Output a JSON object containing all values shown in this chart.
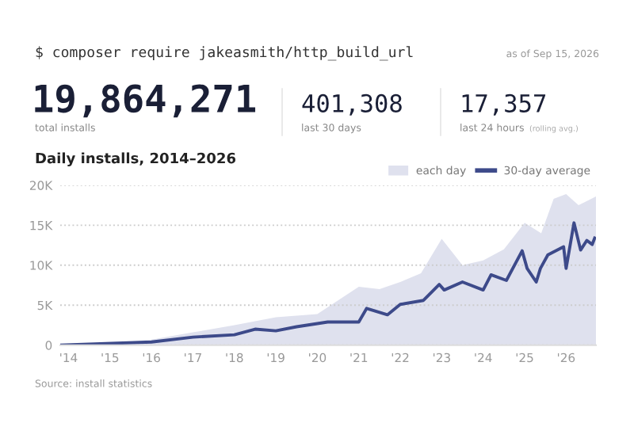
{
  "chart_data": {
    "type": "line",
    "title": "Daily installs, 2014–2026",
    "annotations": [
      "$ composer require jakeasmith/http_build_url",
      "as of Sep 15, 2026",
      "19,864,271",
      "total installs",
      "401,308",
      "last 30 days",
      "17,357",
      "last 24 hours",
      "(rolling avg.)",
      "Source: install statistics"
    ],
    "series": [
      {
        "name": "each day",
        "type": "area",
        "color": "#dfe1ee",
        "x": [
          2013.8,
          2015,
          2016,
          2017,
          2018,
          2019,
          2020,
          2021,
          2021.5,
          2022,
          2022.5,
          2023,
          2023.5,
          2024,
          2024.5,
          2025,
          2025.4,
          2025.7,
          2026,
          2026.3,
          2026.72
        ],
        "values": [
          0,
          200,
          700,
          1600,
          2500,
          3500,
          3900,
          7300,
          7000,
          7900,
          9000,
          13300,
          10000,
          10600,
          12000,
          15300,
          14000,
          18300,
          18900,
          17500,
          18600
        ]
      },
      {
        "name": "30-day average",
        "color": "#3d4a8a",
        "x": [
          2013.8,
          2016,
          2017,
          2018,
          2018.5,
          2019,
          2019.5,
          2020,
          2020.25,
          2021,
          2021.19,
          2021.69,
          2022,
          2022.56,
          2022.94,
          2023.06,
          2023.5,
          2024,
          2024.19,
          2024.56,
          2024.94,
          2025.06,
          2025.28,
          2025.38,
          2025.56,
          2025.94,
          2026,
          2026.19,
          2026.35,
          2026.5,
          2026.63,
          2026.69
        ],
        "values": [
          0,
          400,
          1000,
          1300,
          2000,
          1800,
          2300,
          2700,
          2900,
          2900,
          4600,
          3800,
          5100,
          5600,
          7600,
          6900,
          7900,
          6900,
          8800,
          8100,
          11800,
          9600,
          7900,
          9600,
          11300,
          12300,
          9600,
          15300,
          11900,
          13100,
          12600,
          13400
        ]
      }
    ],
    "xlim": [
      2013.8,
      2026.72
    ],
    "xticks": [
      {
        "value": 2014,
        "label": "'14"
      },
      {
        "value": 2015,
        "label": "'15"
      },
      {
        "value": 2016,
        "label": "'16"
      },
      {
        "value": 2017,
        "label": "'17"
      },
      {
        "value": 2018,
        "label": "'18"
      },
      {
        "value": 2019,
        "label": "'19"
      },
      {
        "value": 2020,
        "label": "'20"
      },
      {
        "value": 2021,
        "label": "'21"
      },
      {
        "value": 2022,
        "label": "'22"
      },
      {
        "value": 2023,
        "label": "'23"
      },
      {
        "value": 2024,
        "label": "'24"
      },
      {
        "value": 2025,
        "label": "'25"
      },
      {
        "value": 2026,
        "label": "'26"
      }
    ],
    "ylim": [
      0,
      20000
    ],
    "yticks": [
      0,
      {
        "value": 5000,
        "label": "5K"
      },
      {
        "value": 10000,
        "label": "10K"
      },
      {
        "value": 15000,
        "label": "15K"
      },
      {
        "value": 20000,
        "label": "20K"
      }
    ],
    "grid": "y",
    "legend": "top right",
    "line_style": "solid",
    "marker": "none"
  }
}
